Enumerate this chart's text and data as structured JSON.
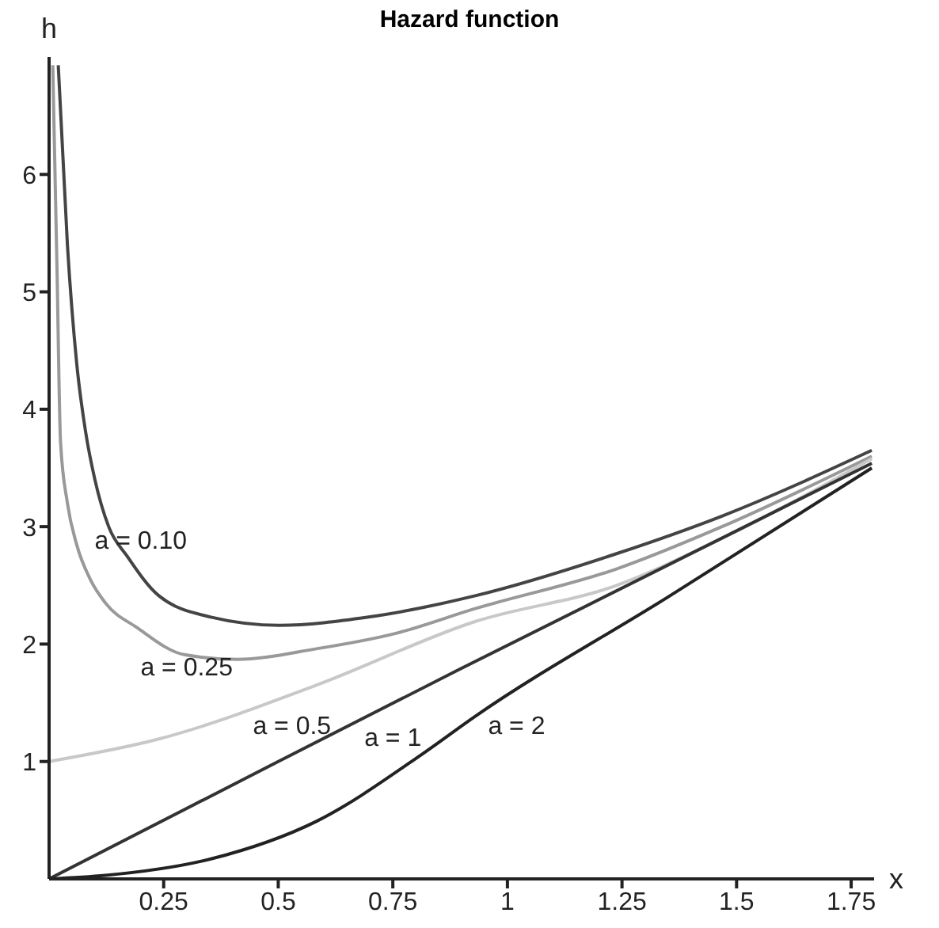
{
  "chart_data": {
    "type": "line",
    "title": "Hazard function",
    "xlabel": "x",
    "ylabel": "h",
    "xlim": [
      0,
      1.8
    ],
    "ylim": [
      0,
      7
    ],
    "xticks": [
      0.25,
      0.5,
      0.75,
      1,
      1.25,
      1.5,
      1.75
    ],
    "yticks": [
      1,
      2,
      3,
      4,
      5,
      6
    ],
    "grid": false,
    "legend": false,
    "marker": "none",
    "line_style": "solid",
    "series": [
      {
        "name": "a = 0.10",
        "color": "#444444",
        "x": [
          0.02,
          0.04,
          0.06,
          0.08,
          0.1,
          0.13,
          0.17,
          0.24,
          0.353,
          0.502,
          0.697,
          0.928,
          1.238,
          1.468,
          1.795
        ],
        "values": [
          6.93,
          5.4,
          4.4,
          3.8,
          3.4,
          3.0,
          2.75,
          2.41,
          2.23,
          2.16,
          2.23,
          2.41,
          2.77,
          3.09,
          3.65
        ]
      },
      {
        "name": "a = 0.25",
        "color": "#999999",
        "x": [
          0.008,
          0.017,
          0.025,
          0.04,
          0.06,
          0.09,
          0.123,
          0.192,
          0.295,
          0.41,
          0.583,
          0.755,
          0.928,
          1.238,
          1.468,
          1.795
        ],
        "values": [
          6.93,
          5.25,
          3.72,
          3.2,
          2.85,
          2.55,
          2.35,
          2.14,
          1.91,
          1.87,
          1.96,
          2.09,
          2.3,
          2.64,
          3.0,
          3.6
        ]
      },
      {
        "name": "a = 0.5",
        "color": "#c8c8c8",
        "x": [
          0,
          0.238,
          0.583,
          0.928,
          1.238,
          1.468,
          1.795
        ],
        "values": [
          1.0,
          1.19,
          1.65,
          2.19,
          2.5,
          2.9,
          3.58
        ]
      },
      {
        "name": "a = 1",
        "color": "#333333",
        "x": [
          0,
          0.5,
          0.893,
          1.795
        ],
        "values": [
          0,
          1.0,
          1.78,
          3.54
        ]
      },
      {
        "name": "a = 2",
        "color": "#222222",
        "x": [
          0,
          0.123,
          0.353,
          0.583,
          0.813,
          0.928,
          1.35,
          1.795
        ],
        "values": [
          0,
          0.03,
          0.17,
          0.49,
          1.06,
          1.38,
          2.4,
          3.5
        ]
      }
    ]
  }
}
